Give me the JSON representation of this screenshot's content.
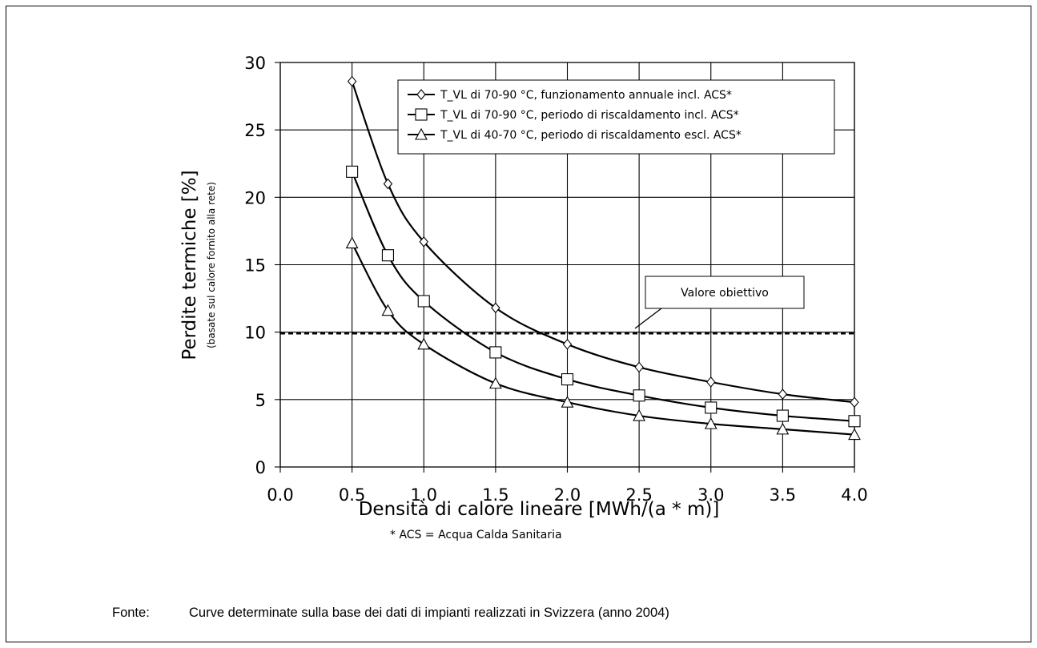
{
  "chart_data": {
    "type": "line",
    "xlabel": "Densità di calore lineare [MWh/(a * m)]",
    "ylabel": "Perdite termiche [%]",
    "ylabel_sub": "(basate sul calore fornito alla rete)",
    "xlim": [
      0,
      4
    ],
    "ylim": [
      0,
      30
    ],
    "x_ticks": [
      "0.0",
      "0.5",
      "1.0",
      "1.5",
      "2.0",
      "2.5",
      "3.0",
      "3.5",
      "4.0"
    ],
    "y_ticks": [
      "0",
      "5",
      "10",
      "15",
      "20",
      "25",
      "30"
    ],
    "grid": true,
    "legend_position": "top-right",
    "x": [
      0.5,
      0.75,
      1.0,
      1.5,
      2.0,
      2.5,
      3.0,
      3.5,
      4.0
    ],
    "series": [
      {
        "name": "T_VL di 70-90 °C, funzionamento annuale incl. ACS*",
        "marker": "diamond",
        "values": [
          28.6,
          21.0,
          16.7,
          11.8,
          9.1,
          7.4,
          6.3,
          5.4,
          4.8
        ]
      },
      {
        "name": "T_VL di 70-90 °C, periodo di riscaldamento incl. ACS*",
        "marker": "square",
        "values": [
          21.9,
          15.7,
          12.3,
          8.5,
          6.5,
          5.3,
          4.4,
          3.8,
          3.4
        ]
      },
      {
        "name": "T_VL di 40-70 °C, periodo di riscaldamento escl. ACS*",
        "marker": "triangle",
        "values": [
          16.6,
          11.6,
          9.1,
          6.2,
          4.8,
          3.8,
          3.2,
          2.8,
          2.4
        ]
      }
    ],
    "reference_line": {
      "value": 9.9,
      "label": "Valore obiettivo",
      "style": "dashed"
    },
    "footnote": "* ACS = Acqua Calda Sanitaria"
  },
  "source": {
    "label": "Fonte:",
    "text": "Curve determinate sulla base dei dati di impianti realizzati in Svizzera (anno 2004)"
  }
}
